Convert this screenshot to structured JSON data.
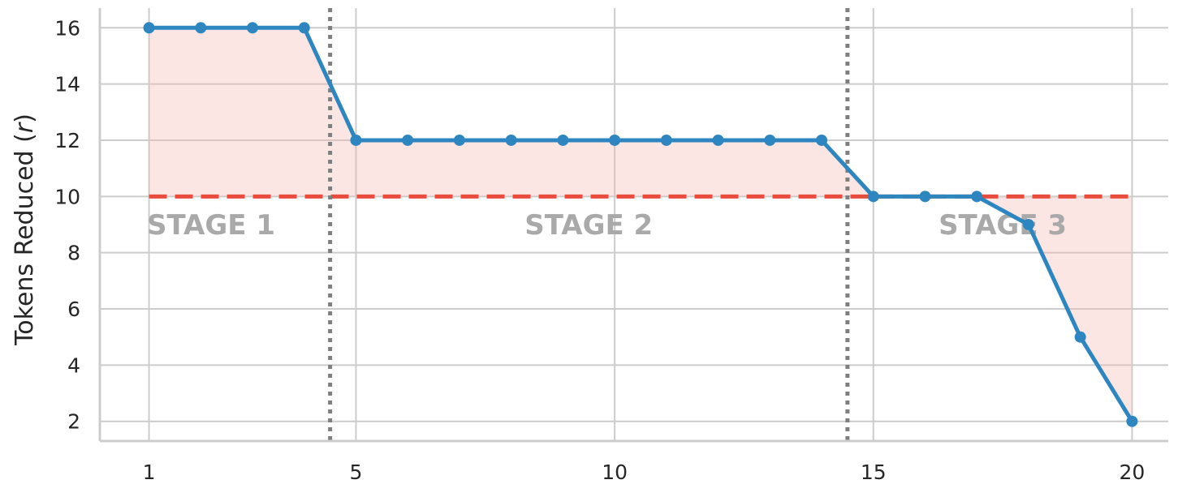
{
  "chart_data": {
    "type": "line",
    "title": "",
    "xlabel": "",
    "ylabel": "Tokens Reduced (r)",
    "ylabel_text": "Tokens Reduced (",
    "ylabel_var": "r",
    "ylabel_close": ")",
    "xlim": [
      0.05,
      20.7
    ],
    "ylim": [
      1.3,
      16.7
    ],
    "x_ticks": [
      1,
      5,
      10,
      15,
      20
    ],
    "y_ticks": [
      2,
      4,
      6,
      8,
      10,
      12,
      14,
      16
    ],
    "x_tick_labels": [
      "1",
      "5",
      "10",
      "15",
      "20"
    ],
    "y_tick_labels": [
      "2",
      "4",
      "6",
      "8",
      "10",
      "12",
      "14",
      "16"
    ],
    "grid": true,
    "series": [
      {
        "color": "#2e86c1",
        "x": [
          1,
          2,
          3,
          4,
          5,
          6,
          7,
          8,
          9,
          10,
          11,
          12,
          13,
          14,
          15,
          16,
          17,
          18,
          19,
          20
        ],
        "x_display": [
          1,
          2,
          3,
          4,
          5,
          6,
          7,
          8,
          9,
          10,
          11,
          12,
          13,
          14,
          15,
          16,
          17,
          18,
          19,
          20
        ],
        "values": [
          16,
          16,
          16,
          16,
          12,
          12,
          12,
          12,
          12,
          12,
          12,
          12,
          12,
          12,
          10,
          10,
          10,
          9,
          5,
          2
        ]
      }
    ],
    "baseline": {
      "value": 10,
      "color": "#e74c3c",
      "style": "dashed",
      "x_range": [
        1,
        20
      ]
    },
    "fill": {
      "color": "#f5b7b1",
      "between": "series and baseline"
    },
    "stage_dividers": [
      4.5,
      14.5
    ],
    "stage_dividers_color": "#7f7f7f",
    "stages": [
      {
        "label": "STAGE 1",
        "x": 2.2
      },
      {
        "label": "STAGE 2",
        "x": 9.5
      },
      {
        "label": "STAGE 3",
        "x": 17.5
      }
    ],
    "stage_label_y": 9
  }
}
